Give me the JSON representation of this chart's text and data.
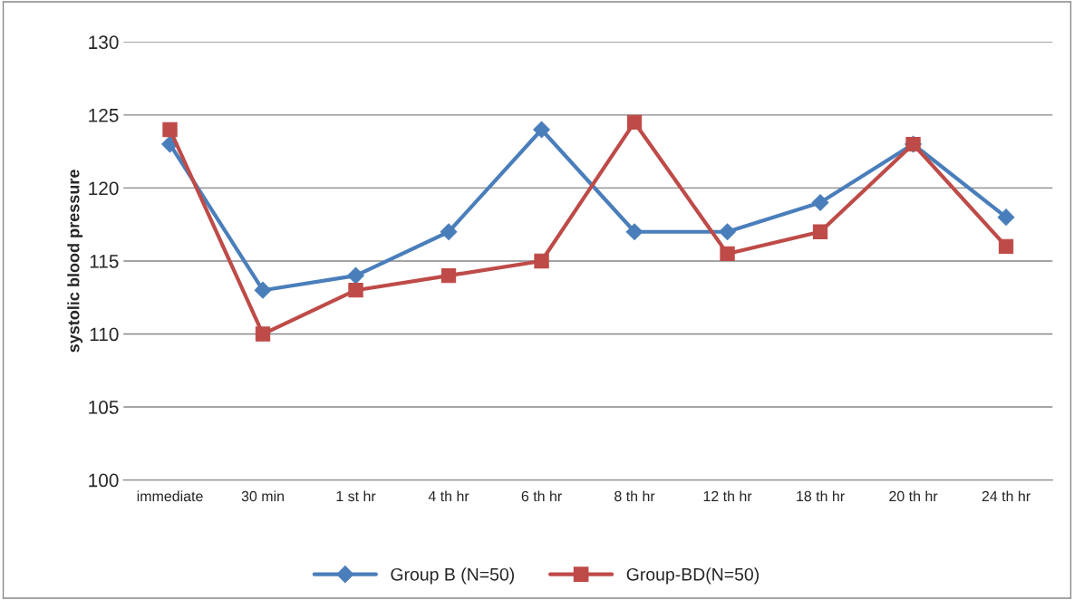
{
  "chart_data": {
    "type": "line",
    "ylabel": "systolic blood pressure",
    "categories": [
      "immediate",
      "30 min",
      "1 st hr",
      "4 th hr",
      "6 th hr",
      "8 th hr",
      "12 th hr",
      "18 th hr",
      "20 th hr",
      "24 th hr"
    ],
    "series": [
      {
        "name": "Group B (N=50)",
        "color": "#4a7ebb",
        "marker": "diamond",
        "values": [
          123,
          113,
          114,
          117,
          124,
          117,
          117,
          119,
          123,
          118
        ]
      },
      {
        "name": "Group-BD(N=50)",
        "color": "#be4b48",
        "marker": "square",
        "values": [
          124,
          110,
          113,
          114,
          115,
          124.5,
          115.5,
          117,
          123,
          116
        ]
      }
    ],
    "ylim": [
      100,
      130
    ],
    "yticks": [
      100,
      105,
      110,
      115,
      120,
      125,
      130
    ],
    "grid": "y",
    "legend": "bottom",
    "line_style": "solid"
  }
}
